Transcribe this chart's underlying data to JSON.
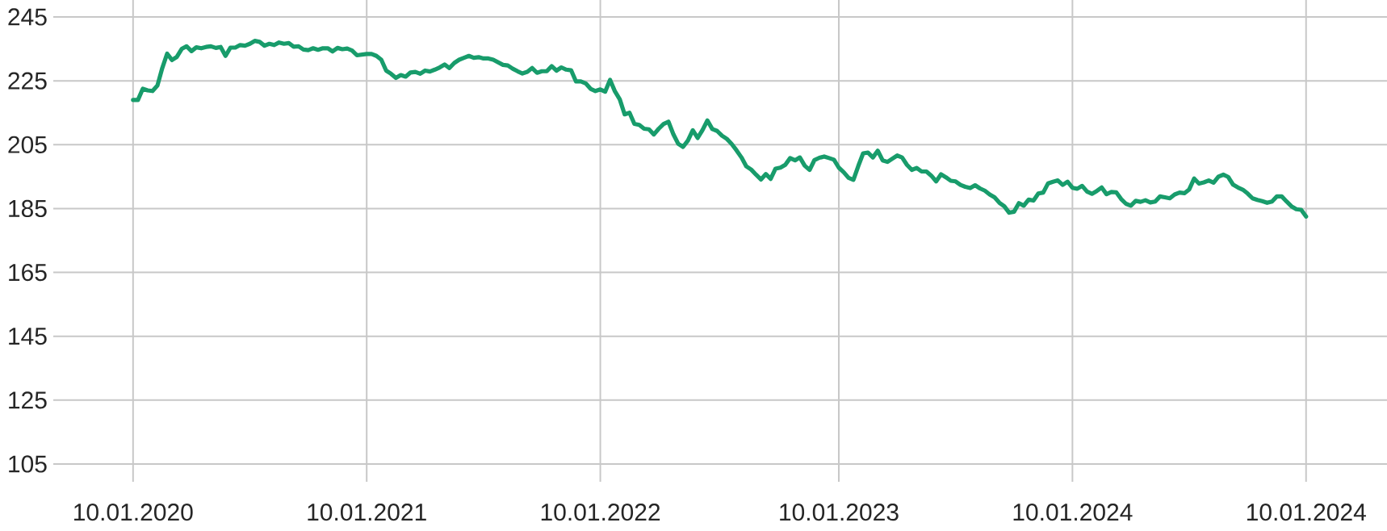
{
  "chart_data": {
    "type": "line",
    "color": "#189c6b",
    "grid": true,
    "ylim": [
      105,
      245
    ],
    "categories": [
      "10.01.2020",
      null,
      null,
      null,
      null,
      null,
      null,
      null,
      null,
      null,
      null,
      null,
      null,
      null,
      null,
      null,
      null,
      null,
      null,
      null,
      null,
      null,
      null,
      null,
      null,
      null,
      null,
      null,
      null,
      null,
      null,
      null,
      null,
      null,
      null,
      null,
      null,
      null,
      null,
      null,
      null,
      null,
      null,
      null,
      null,
      null,
      null,
      null,
      "10.01.2021",
      null,
      null,
      null,
      null,
      null,
      null,
      null,
      null,
      null,
      null,
      null,
      null,
      null,
      null,
      null,
      null,
      null,
      null,
      null,
      null,
      null,
      null,
      null,
      null,
      null,
      null,
      null,
      null,
      null,
      null,
      null,
      null,
      null,
      null,
      null,
      null,
      null,
      null,
      null,
      null,
      null,
      null,
      null,
      null,
      null,
      null,
      null,
      "10.01.2022",
      null,
      null,
      null,
      null,
      null,
      null,
      null,
      null,
      null,
      null,
      null,
      null,
      null,
      null,
      null,
      null,
      null,
      null,
      null,
      null,
      null,
      null,
      null,
      null,
      null,
      null,
      null,
      null,
      null,
      null,
      null,
      null,
      null,
      null,
      null,
      null,
      null,
      null,
      null,
      null,
      null,
      null,
      null,
      null,
      null,
      null,
      null,
      null,
      "10.01.2023",
      null,
      null,
      null,
      null,
      null,
      null,
      null,
      null,
      null,
      null,
      null,
      null,
      null,
      null,
      null,
      null,
      null,
      null,
      null,
      null,
      null,
      null,
      null,
      null,
      null,
      null,
      null,
      null,
      null,
      null,
      null,
      null,
      null,
      null,
      null,
      null,
      null,
      null,
      null,
      null,
      null,
      null,
      null,
      null,
      null,
      null,
      null,
      "10.01.2024",
      null,
      null,
      null,
      null,
      null,
      null,
      null,
      null,
      null,
      null,
      null,
      null,
      null,
      null,
      null,
      null,
      null,
      null,
      null,
      null,
      null,
      null,
      null,
      null,
      null,
      null,
      null,
      null,
      null,
      null,
      null,
      null,
      null,
      null,
      null,
      null,
      null,
      null,
      null,
      null,
      null,
      null,
      null,
      null,
      null,
      null,
      null,
      "10.01.2024"
    ],
    "yticks": [
      105,
      125,
      145,
      165,
      185,
      205,
      225,
      245
    ],
    "values": [
      219,
      219,
      222.5,
      222,
      221.8,
      223.5,
      229,
      233.5,
      231.5,
      232.5,
      235,
      235.8,
      234.3,
      235.5,
      235.2,
      235.6,
      235.8,
      235.3,
      235.6,
      232.8,
      235.4,
      235.4,
      236.2,
      236,
      236.6,
      237.5,
      237.2,
      236,
      236.6,
      236.2,
      237,
      236.6,
      236.8,
      235.7,
      235.8,
      234.8,
      234.6,
      235.2,
      234.7,
      235.2,
      235.2,
      234.2,
      235.3,
      234.9,
      235.1,
      234.5,
      233,
      233.2,
      233.4,
      233.4,
      232.8,
      231.6,
      228.2,
      227.2,
      225.9,
      226.8,
      226.3,
      227.6,
      227.8,
      227.2,
      228.2,
      227.9,
      228.5,
      229.2,
      230.1,
      229,
      230.6,
      231.6,
      232.2,
      232.8,
      232.2,
      232.4,
      232,
      232,
      231.6,
      230.8,
      230,
      229.8,
      228.8,
      228,
      227.3,
      227.8,
      229,
      227.5,
      228,
      228,
      229.6,
      228.2,
      229.2,
      228.5,
      228.3,
      224.8,
      224.8,
      224.2,
      222.5,
      221.8,
      222.3,
      221.6,
      225.3,
      221.7,
      219.2,
      214.5,
      215,
      211.5,
      211.2,
      210,
      209.8,
      208.2,
      210,
      211.5,
      212.2,
      208.3,
      205.3,
      204.3,
      206.3,
      209.5,
      207.1,
      209.6,
      212.6,
      209.9,
      209.3,
      207.8,
      206.8,
      205.2,
      203.2,
      201,
      198.2,
      197.2,
      195.6,
      194.1,
      195.8,
      194.3,
      197.5,
      197.8,
      198.7,
      200.8,
      200.1,
      201,
      198.4,
      197.1,
      200.2,
      200.9,
      201.3,
      200.8,
      200.3,
      197.8,
      196.4,
      194.6,
      194,
      198.3,
      202.3,
      202.5,
      201,
      203.1,
      200.1,
      199.6,
      200.6,
      201.6,
      201,
      198.7,
      197.1,
      197.7,
      196.6,
      196.6,
      195.3,
      193.5,
      195.7,
      194.8,
      193.7,
      193.5,
      192.4,
      191.8,
      191.4,
      192.3,
      191.3,
      190.6,
      189.4,
      188.5,
      186.8,
      185.7,
      183.7,
      184,
      186.7,
      185.9,
      187.8,
      187.5,
      189.7,
      190,
      192.9,
      193.4,
      193.8,
      192.4,
      193.4,
      191.5,
      191.2,
      192.1,
      190.3,
      189.6,
      190.5,
      191.6,
      189.5,
      190.2,
      190.1,
      188,
      186.5,
      185.9,
      187.4,
      187.1,
      187.6,
      186.9,
      187.2,
      188.8,
      188.5,
      188.2,
      189.4,
      190,
      189.8,
      191,
      194.4,
      192.8,
      193.2,
      193.8,
      193.1,
      195,
      195.6,
      194.9,
      192.5,
      191.6,
      190.9,
      189.7,
      188.2,
      187.7,
      187.3,
      186.8,
      187.2,
      188.8,
      188.8,
      187.2,
      185.7,
      184.8,
      184.6,
      182.5
    ]
  }
}
